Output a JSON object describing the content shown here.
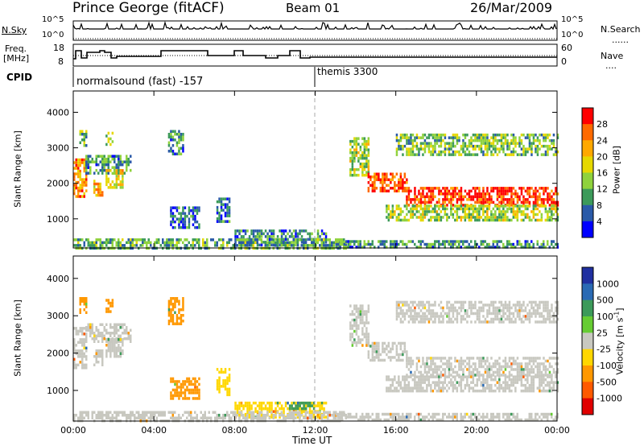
{
  "header": {
    "station": "Prince George (fitACF)",
    "beam": "Beam 01",
    "date": "26/Mar/2009"
  },
  "top_panel": {
    "nsky_label": "N.Sky",
    "nsky_ticks": [
      "10^5",
      "10^0"
    ],
    "nsearch_label": "N.Search",
    "nsearch_ticks": [
      "10^5",
      "10^0"
    ],
    "freq_label": "Freq.",
    "freq_unit": "[MHz]",
    "freq_ticks": [
      "18",
      "8"
    ],
    "nave_label": "Nave",
    "nave_ticks": [
      "60",
      "0"
    ],
    "cpid_label": "CPID",
    "cpid_modes": [
      {
        "name": "normalsound (fast) -157",
        "start_hour": 0,
        "end_hour": 12
      },
      {
        "name": "themis 3300",
        "start_hour": 12,
        "end_hour": 24
      }
    ]
  },
  "colorbars": {
    "power": {
      "label": "Power [dB]",
      "ticks": [
        "28",
        "24",
        "20",
        "16",
        "12",
        "8",
        "4"
      ],
      "colors": [
        "#ff0000",
        "#ff6a00",
        "#ffa800",
        "#e6d800",
        "#8fd23c",
        "#3c9a5a",
        "#2a5aa8",
        "#0000ff"
      ]
    },
    "velocity": {
      "label": "Velocity [m s^-1]",
      "ticks": [
        "1000",
        "500",
        "100",
        "25",
        "-25",
        "-100",
        "-500",
        "-1000"
      ],
      "colors": [
        "#2030a0",
        "#2a6ab4",
        "#3c9a5a",
        "#66cc33",
        "#c8c8c0",
        "#ffd700",
        "#ff9800",
        "#ff5a00",
        "#e00000"
      ]
    }
  },
  "chart_data": [
    {
      "type": "heatmap",
      "panel": "power",
      "ylabel": "Slant Range [km]",
      "yticks": [
        1000,
        2000,
        3000,
        4000
      ],
      "ylim": [
        180,
        4600
      ],
      "xlim": [
        0,
        24
      ],
      "xticks": [
        "00:00",
        "04:00",
        "08:00",
        "12:00",
        "16:00",
        "20:00",
        "00:00"
      ],
      "colorbar": "Power [dB]",
      "zlim": [
        0,
        30
      ],
      "regions": [
        {
          "t0": 0.0,
          "t1": 0.6,
          "r0": 1600,
          "r1": 2700,
          "value": 22
        },
        {
          "t0": 0.6,
          "t1": 2.8,
          "r0": 2300,
          "r1": 2800,
          "value": 9
        },
        {
          "t0": 1.0,
          "t1": 1.4,
          "r0": 1700,
          "r1": 2100,
          "value": 20
        },
        {
          "t0": 1.6,
          "t1": 2.4,
          "r0": 1900,
          "r1": 2400,
          "value": 17
        },
        {
          "t0": 0.3,
          "t1": 0.6,
          "r0": 3100,
          "r1": 3500,
          "value": 12
        },
        {
          "t0": 1.6,
          "t1": 1.9,
          "r0": 3100,
          "r1": 3450,
          "value": 12
        },
        {
          "t0": 4.7,
          "t1": 5.4,
          "r0": 2800,
          "r1": 3500,
          "value": 8
        },
        {
          "t0": 4.8,
          "t1": 6.2,
          "r0": 750,
          "r1": 1350,
          "value": 6
        },
        {
          "t0": 7.1,
          "t1": 7.7,
          "r0": 900,
          "r1": 1600,
          "value": 6
        },
        {
          "t0": 8.0,
          "t1": 12.5,
          "r0": 250,
          "r1": 700,
          "value": 8
        },
        {
          "t0": 0.0,
          "t1": 13.5,
          "r0": 180,
          "r1": 450,
          "value": 10
        },
        {
          "t0": 13.7,
          "t1": 14.6,
          "r0": 2200,
          "r1": 3300,
          "value": 14
        },
        {
          "t0": 14.6,
          "t1": 16.5,
          "r0": 1800,
          "r1": 2300,
          "value": 26
        },
        {
          "t0": 16.5,
          "t1": 24.0,
          "r0": 1400,
          "r1": 1900,
          "value": 27
        },
        {
          "t0": 15.5,
          "t1": 24.0,
          "r0": 1000,
          "r1": 1400,
          "value": 14
        },
        {
          "t0": 16.0,
          "t1": 24.0,
          "r0": 2800,
          "r1": 3400,
          "value": 12
        },
        {
          "t0": 13.0,
          "t1": 24.0,
          "r0": 180,
          "r1": 400,
          "value": 9
        }
      ]
    },
    {
      "type": "heatmap",
      "panel": "velocity",
      "ylabel": "Slant Range [km]",
      "xlabel": "Time UT",
      "yticks": [
        1000,
        2000,
        3000,
        4000
      ],
      "ylim": [
        180,
        4600
      ],
      "xlim": [
        0,
        24
      ],
      "xticks": [
        "00:00",
        "04:00",
        "08:00",
        "12:00",
        "16:00",
        "20:00",
        "00:00"
      ],
      "colorbar": "Velocity [m s^-1]",
      "zlim": [
        -1000,
        1000
      ],
      "regions": [
        {
          "t0": 0.0,
          "t1": 0.6,
          "r0": 1600,
          "r1": 2700,
          "value": 0
        },
        {
          "t0": 0.6,
          "t1": 2.8,
          "r0": 2300,
          "r1": 2800,
          "value": 0
        },
        {
          "t0": 1.0,
          "t1": 1.4,
          "r0": 1700,
          "r1": 2100,
          "value": 0
        },
        {
          "t0": 1.6,
          "t1": 2.4,
          "r0": 1900,
          "r1": 2400,
          "value": 0
        },
        {
          "t0": 0.3,
          "t1": 0.6,
          "r0": 3100,
          "r1": 3500,
          "value": -150
        },
        {
          "t0": 1.6,
          "t1": 1.9,
          "r0": 3100,
          "r1": 3450,
          "value": -150
        },
        {
          "t0": 4.7,
          "t1": 5.4,
          "r0": 2800,
          "r1": 3500,
          "value": -150
        },
        {
          "t0": 4.8,
          "t1": 6.2,
          "r0": 750,
          "r1": 1350,
          "value": -300
        },
        {
          "t0": 7.1,
          "t1": 7.7,
          "r0": 900,
          "r1": 1600,
          "value": -60
        },
        {
          "t0": 8.0,
          "t1": 12.5,
          "r0": 250,
          "r1": 700,
          "value": -60
        },
        {
          "t0": 0.0,
          "t1": 13.5,
          "r0": 180,
          "r1": 450,
          "value": 0
        },
        {
          "t0": 10.7,
          "t1": 11.9,
          "r0": 500,
          "r1": 700,
          "value": 120
        },
        {
          "t0": 13.7,
          "t1": 14.6,
          "r0": 2200,
          "r1": 3300,
          "value": 0
        },
        {
          "t0": 14.6,
          "t1": 16.5,
          "r0": 1800,
          "r1": 2300,
          "value": 0
        },
        {
          "t0": 16.5,
          "t1": 24.0,
          "r0": 1400,
          "r1": 1900,
          "value": 0
        },
        {
          "t0": 15.5,
          "t1": 24.0,
          "r0": 1000,
          "r1": 1400,
          "value": 0
        },
        {
          "t0": 16.0,
          "t1": 24.0,
          "r0": 2800,
          "r1": 3400,
          "value": 0
        },
        {
          "t0": 13.0,
          "t1": 24.0,
          "r0": 180,
          "r1": 400,
          "value": 0
        }
      ]
    }
  ]
}
